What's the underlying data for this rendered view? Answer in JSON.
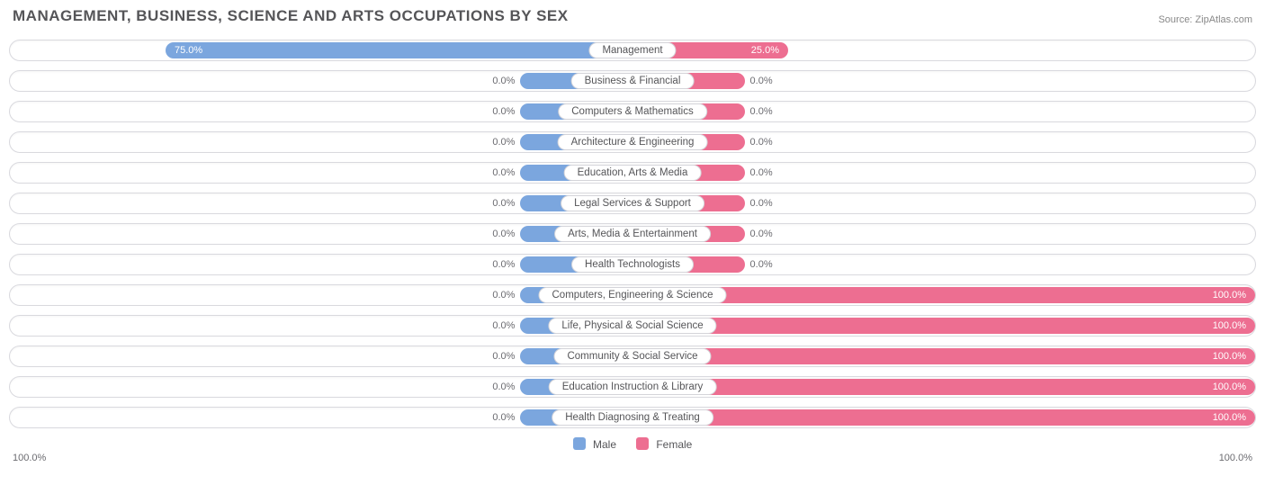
{
  "title": "MANAGEMENT, BUSINESS, SCIENCE AND ARTS OCCUPATIONS BY SEX",
  "source": "Source: ZipAtlas.com",
  "colors": {
    "male": "#7ba6de",
    "female": "#ed6e91",
    "track_border": "#d9d9de",
    "text_dark": "#555558",
    "text_muted": "#6b6b70",
    "background": "#ffffff"
  },
  "axis": {
    "left": "100.0%",
    "right": "100.0%"
  },
  "legend": {
    "male": "Male",
    "female": "Female"
  },
  "min_stub_pct": 18,
  "rows": [
    {
      "label": "Management",
      "male": 75.0,
      "female": 25.0
    },
    {
      "label": "Business & Financial",
      "male": 0.0,
      "female": 0.0
    },
    {
      "label": "Computers & Mathematics",
      "male": 0.0,
      "female": 0.0
    },
    {
      "label": "Architecture & Engineering",
      "male": 0.0,
      "female": 0.0
    },
    {
      "label": "Education, Arts & Media",
      "male": 0.0,
      "female": 0.0
    },
    {
      "label": "Legal Services & Support",
      "male": 0.0,
      "female": 0.0
    },
    {
      "label": "Arts, Media & Entertainment",
      "male": 0.0,
      "female": 0.0
    },
    {
      "label": "Health Technologists",
      "male": 0.0,
      "female": 0.0
    },
    {
      "label": "Computers, Engineering & Science",
      "male": 0.0,
      "female": 100.0
    },
    {
      "label": "Life, Physical & Social Science",
      "male": 0.0,
      "female": 100.0
    },
    {
      "label": "Community & Social Service",
      "male": 0.0,
      "female": 100.0
    },
    {
      "label": "Education Instruction & Library",
      "male": 0.0,
      "female": 100.0
    },
    {
      "label": "Health Diagnosing & Treating",
      "male": 0.0,
      "female": 100.0
    }
  ]
}
